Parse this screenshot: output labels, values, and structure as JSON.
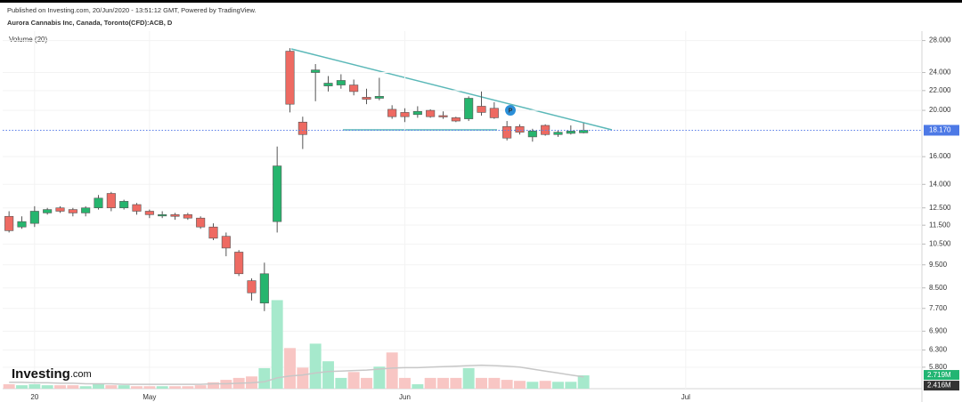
{
  "header": {
    "published": "Published on Investing.com, 20/Jun/2020 - 13:51:12 GMT, Powered by TradingView.",
    "symbol": "Aurora Cannabis Inc, Canada, Toronto(CFD):ACB, D"
  },
  "logo": {
    "brand": "Investing",
    "suffix": ".com"
  },
  "chart_data": {
    "type": "candlestick",
    "log_scale": true,
    "grid": true,
    "up_color": "#26b56e",
    "down_color": "#ee6a62",
    "ylim": [
      5.23,
      29.3
    ],
    "yticks": [
      {
        "value": 28,
        "label": "28.000"
      },
      {
        "value": 24,
        "label": "24.000"
      },
      {
        "value": 22,
        "label": "22.000"
      },
      {
        "value": 20,
        "label": "20.000"
      },
      {
        "value": 16,
        "label": "16.000"
      },
      {
        "value": 14,
        "label": "14.000"
      },
      {
        "value": 12.5,
        "label": "12.500"
      },
      {
        "value": 11.5,
        "label": "11.500"
      },
      {
        "value": 10.5,
        "label": "10.500"
      },
      {
        "value": 9.5,
        "label": "9.500"
      },
      {
        "value": 8.5,
        "label": "8.500"
      },
      {
        "value": 7.7,
        "label": "7.700"
      },
      {
        "value": 6.9,
        "label": "6.900"
      },
      {
        "value": 6.3,
        "label": "6.300"
      },
      {
        "value": 5.8,
        "label": "5.800"
      }
    ],
    "last_price": {
      "value": 18.17,
      "label": "18.170"
    },
    "annotation": "P",
    "categories": [
      null,
      null,
      "20",
      null,
      null,
      null,
      null,
      null,
      null,
      null,
      null,
      "May",
      null,
      null,
      null,
      null,
      null,
      null,
      null,
      null,
      null,
      null,
      null,
      null,
      null,
      null,
      null,
      null,
      null,
      null,
      null,
      "Jun",
      null,
      null,
      null,
      null,
      null,
      null,
      null,
      null,
      null,
      null,
      null,
      null,
      null,
      null,
      null,
      null,
      null,
      null,
      null,
      null,
      null,
      "Jul",
      null,
      null,
      null,
      null,
      null,
      null,
      null,
      null,
      null,
      null,
      null,
      null,
      null,
      null,
      null,
      null,
      null,
      null
    ],
    "open": [
      12.0,
      11.4,
      11.6,
      12.2,
      12.5,
      12.4,
      12.2,
      12.5,
      13.4,
      12.5,
      12.7,
      12.3,
      12.1,
      12.1,
      12.1,
      11.9,
      11.4,
      10.9,
      10.1,
      8.8,
      7.9,
      11.7,
      26.6,
      18.9,
      24.0,
      22.5,
      22.6,
      22.6,
      21.3,
      21.2,
      20.1,
      19.8,
      19.6,
      20.0,
      19.5,
      19.3,
      19.2,
      20.4,
      20.2,
      18.5,
      18.5,
      17.6,
      18.6,
      17.8,
      17.9,
      17.95,
      null,
      null,
      null,
      null,
      null,
      null,
      null,
      null,
      null,
      null,
      null,
      null,
      null,
      null,
      null,
      null,
      null,
      null,
      null,
      null,
      null,
      null,
      null,
      null,
      null,
      null
    ],
    "high": [
      12.3,
      12.0,
      12.6,
      12.5,
      12.6,
      12.5,
      12.6,
      13.3,
      13.5,
      13.0,
      12.8,
      12.4,
      12.3,
      12.2,
      12.2,
      12.0,
      11.6,
      11.1,
      10.2,
      8.9,
      9.6,
      16.8,
      27.0,
      19.4,
      25.0,
      23.6,
      23.8,
      23.2,
      22.2,
      23.4,
      20.5,
      20.2,
      20.4,
      20.1,
      19.9,
      19.4,
      21.4,
      21.9,
      20.8,
      19.0,
      18.7,
      18.3,
      18.7,
      18.2,
      18.6,
      18.8,
      null,
      null,
      null,
      null,
      null,
      null,
      null,
      null,
      null,
      null,
      null,
      null,
      null,
      null,
      null,
      null,
      null,
      null,
      null,
      null,
      null,
      null,
      null,
      null,
      null,
      null
    ],
    "low": [
      11.1,
      11.3,
      11.4,
      12.1,
      12.2,
      12.0,
      12.0,
      12.4,
      12.3,
      12.4,
      12.1,
      11.9,
      11.9,
      11.8,
      11.8,
      11.3,
      10.7,
      9.9,
      9.0,
      8.0,
      7.6,
      11.1,
      19.8,
      16.6,
      20.9,
      21.9,
      22.2,
      21.5,
      20.6,
      21.0,
      19.2,
      18.9,
      19.3,
      19.3,
      19.2,
      18.9,
      19.0,
      19.5,
      19.2,
      17.3,
      17.8,
      17.2,
      17.7,
      17.6,
      17.8,
      17.9,
      null,
      null,
      null,
      null,
      null,
      null,
      null,
      null,
      null,
      null,
      null,
      null,
      null,
      null,
      null,
      null,
      null,
      null,
      null,
      null,
      null,
      null,
      null,
      null,
      null,
      null
    ],
    "close": [
      11.2,
      11.7,
      12.3,
      12.4,
      12.3,
      12.2,
      12.5,
      13.1,
      12.5,
      12.9,
      12.3,
      12.1,
      12.1,
      12.0,
      11.9,
      11.4,
      10.8,
      10.3,
      9.1,
      8.3,
      9.1,
      15.3,
      20.6,
      17.8,
      24.3,
      22.8,
      23.1,
      21.9,
      21.1,
      21.4,
      19.4,
      19.4,
      19.9,
      19.4,
      19.4,
      19.0,
      21.2,
      19.8,
      19.3,
      17.5,
      18.0,
      18.1,
      17.8,
      18.0,
      18.1,
      18.17,
      null,
      null,
      null,
      null,
      null,
      null,
      null,
      null,
      null,
      null,
      null,
      null,
      null,
      null,
      null,
      null,
      null,
      null,
      null,
      null,
      null,
      null,
      null,
      null,
      null,
      null
    ],
    "volume": {
      "name": "Volume (20)",
      "ylim": [
        0,
        24
      ],
      "up_color": "#a6e9cc",
      "down_color": "#f8c6c4",
      "ma_color": "#c7c7c7",
      "values": [
        0.9,
        0.7,
        0.9,
        0.7,
        0.7,
        0.7,
        0.5,
        0.9,
        0.7,
        0.7,
        0.5,
        0.5,
        0.5,
        0.5,
        0.5,
        0.7,
        1.3,
        1.8,
        2.2,
        2.5,
        4.2,
        18.1,
        8.3,
        4.3,
        9.2,
        5.6,
        2.2,
        3.4,
        2.2,
        4.5,
        7.4,
        2.2,
        0.9,
        2.2,
        2.2,
        2.2,
        4.2,
        2.2,
        2.2,
        1.8,
        1.6,
        1.4,
        1.6,
        1.4,
        1.4,
        2.719,
        null,
        null,
        null,
        null,
        null,
        null,
        null,
        null,
        null,
        null,
        null,
        null,
        null,
        null,
        null,
        null,
        null,
        null,
        null,
        null,
        null,
        null,
        null,
        null,
        null,
        null
      ],
      "ma_values": [
        1.3,
        1.3,
        1.2,
        1.2,
        1.1,
        1.1,
        1.0,
        1.0,
        1.0,
        0.9,
        0.9,
        0.9,
        0.9,
        0.9,
        0.9,
        0.9,
        1.0,
        1.0,
        1.1,
        1.2,
        1.4,
        2.2,
        2.6,
        2.8,
        3.2,
        3.5,
        3.6,
        3.7,
        3.8,
        4.0,
        4.2,
        4.3,
        4.3,
        4.4,
        4.5,
        4.6,
        4.7,
        4.8,
        4.7,
        4.6,
        4.4,
        4.0,
        3.6,
        3.2,
        2.8,
        2.416,
        null,
        null,
        null,
        null,
        null,
        null,
        null,
        null,
        null,
        null,
        null,
        null,
        null,
        null,
        null,
        null,
        null,
        null,
        null,
        null,
        null,
        null,
        null,
        null,
        null,
        null
      ],
      "last_label": "2.719M",
      "ma_label": "2.416M"
    }
  }
}
